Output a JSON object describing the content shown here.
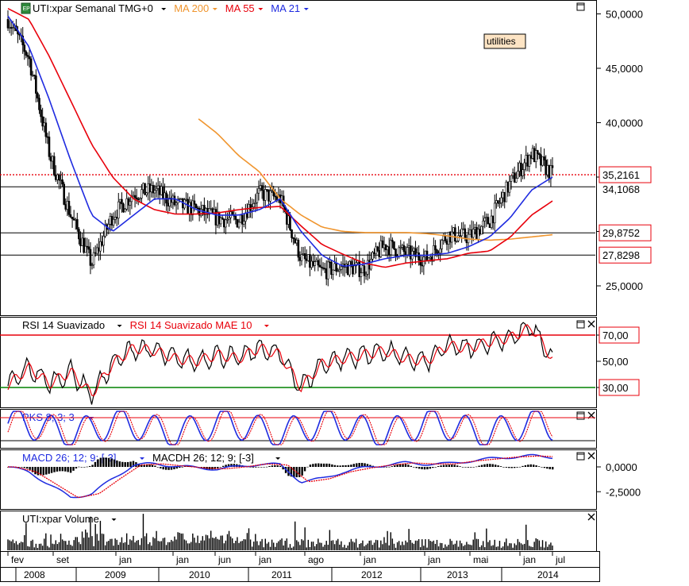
{
  "legend": {
    "main": [
      {
        "text": "UTI:xpar Semanal TMG+0",
        "color": "#000000"
      },
      {
        "text": "MA 200",
        "color": "#f0952e"
      },
      {
        "text": "MA 55",
        "color": "#e8000b"
      },
      {
        "text": "MA 21",
        "color": "#1f2be0"
      }
    ],
    "rsi": [
      {
        "text": "RSI 14 Suavizado",
        "color": "#000000"
      },
      {
        "text": "RSI 14 Suavizado MAE 10",
        "color": "#e8000b"
      }
    ],
    "pks": [
      {
        "text": "PKS 8; 3; 3",
        "color": "#1f2be0"
      }
    ],
    "macd": [
      {
        "text": "MACD 26; 12; 9; [-3]",
        "color": "#1f2be0"
      },
      {
        "text": "MACDH 26; 12; 9; [-3]",
        "color": "#000000"
      }
    ],
    "volume": [
      {
        "text": "UTI:xpar Volume",
        "color": "#000000"
      }
    ]
  },
  "annotation": "utilities",
  "price_axis": [
    "50,0000",
    "45,0000",
    "40,0000",
    "35,0000",
    "30,0000",
    "25,0000"
  ],
  "level_labels": [
    "35,2161",
    "34,1068",
    "29,8752",
    "27,8298"
  ],
  "rsi_axis": [
    "70,00",
    "50,00",
    "30,00"
  ],
  "macd_axis": [
    "0,0000",
    "-2,5000"
  ],
  "time_axis": {
    "months": [
      "fev",
      "set",
      "jan",
      "jan",
      "jun",
      "jan",
      "ago",
      "jan",
      "jan",
      "mai",
      "jan",
      "jul"
    ],
    "years": [
      "2008",
      "2009",
      "2010",
      "2011",
      "2012",
      "2013",
      "2014"
    ]
  },
  "colors": {
    "ma200": "#f0952e",
    "ma55": "#e8000b",
    "ma21": "#1f2be0",
    "rsi_overbought": "#e8000b",
    "rsi_oversold": "#008000",
    "price_line": "#e8000b"
  },
  "chart_data": {
    "type": "line",
    "title": "UTI:xpar Semanal TMG+0",
    "x": [
      "2008-02",
      "2008-06",
      "2008-09",
      "2008-12",
      "2009-03",
      "2009-06",
      "2009-09",
      "2009-12",
      "2010-03",
      "2010-06",
      "2010-09",
      "2010-12",
      "2011-03",
      "2011-06",
      "2011-09",
      "2011-12",
      "2012-03",
      "2012-06",
      "2012-09",
      "2012-12",
      "2013-03",
      "2013-06",
      "2013-09",
      "2013-12",
      "2014-03",
      "2014-06",
      "2014-07"
    ],
    "series": [
      {
        "name": "UTI:xpar Semanal TMG+0",
        "values": [
          49.5,
          46.0,
          37.0,
          31.5,
          27.0,
          31.5,
          33.5,
          33.8,
          32.5,
          32.0,
          31.2,
          31.0,
          33.5,
          33.0,
          27.5,
          26.3,
          26.8,
          26.5,
          28.8,
          28.0,
          27.5,
          29.7,
          29.5,
          31.0,
          34.5,
          37.2,
          35.2
        ]
      },
      {
        "name": "MA 200",
        "values": [
          null,
          null,
          null,
          null,
          null,
          null,
          null,
          null,
          null,
          40.5,
          39.0,
          37.0,
          35.5,
          33.0,
          31.5,
          30.4,
          30.0,
          29.9,
          29.9,
          29.9,
          29.8,
          29.6,
          29.3,
          29.2,
          29.3,
          29.5,
          29.7
        ]
      },
      {
        "name": "MA 55",
        "values": [
          50.5,
          49.5,
          46.0,
          42.0,
          38.0,
          35.0,
          33.0,
          32.0,
          31.6,
          31.6,
          31.7,
          32.0,
          32.2,
          32.3,
          30.5,
          28.8,
          27.9,
          27.1,
          26.7,
          27.1,
          27.3,
          27.5,
          28.0,
          28.2,
          29.5,
          31.5,
          32.8
        ]
      },
      {
        "name": "MA 21",
        "values": [
          49.8,
          47.0,
          42.0,
          36.5,
          31.5,
          30.0,
          31.5,
          33.0,
          33.0,
          32.0,
          31.5,
          31.5,
          32.0,
          33.0,
          30.0,
          27.8,
          26.8,
          27.0,
          27.5,
          27.8,
          27.8,
          28.0,
          28.6,
          29.5,
          31.3,
          33.8,
          35.0
        ]
      }
    ],
    "reference_levels": [
      35.2161,
      34.1068,
      29.8752,
      27.8298
    ],
    "ylim": [
      23.0,
      51.5
    ],
    "rsi": {
      "name": "RSI 14 Suavizado",
      "overbought": 70,
      "oversold": 30,
      "values": [
        32,
        45,
        33,
        42,
        25,
        48,
        60,
        58,
        52,
        50,
        55,
        52,
        60,
        55,
        30,
        48,
        52,
        55,
        58,
        52,
        50,
        62,
        60,
        65,
        68,
        76,
        52
      ]
    },
    "macd": {
      "name": "MACD 26; 12; 9; [-3]",
      "ylim": [
        -3.5,
        1.2
      ],
      "values": [
        0.0,
        -0.5,
        -1.8,
        -3.1,
        -2.7,
        -1.2,
        0.2,
        0.3,
        0.1,
        -0.1,
        -0.2,
        0.0,
        0.3,
        0.2,
        -1.5,
        -1.2,
        -0.5,
        -0.1,
        0.2,
        0.4,
        0.3,
        0.3,
        0.6,
        0.8,
        1.0,
        1.1,
        1.0
      ]
    }
  }
}
